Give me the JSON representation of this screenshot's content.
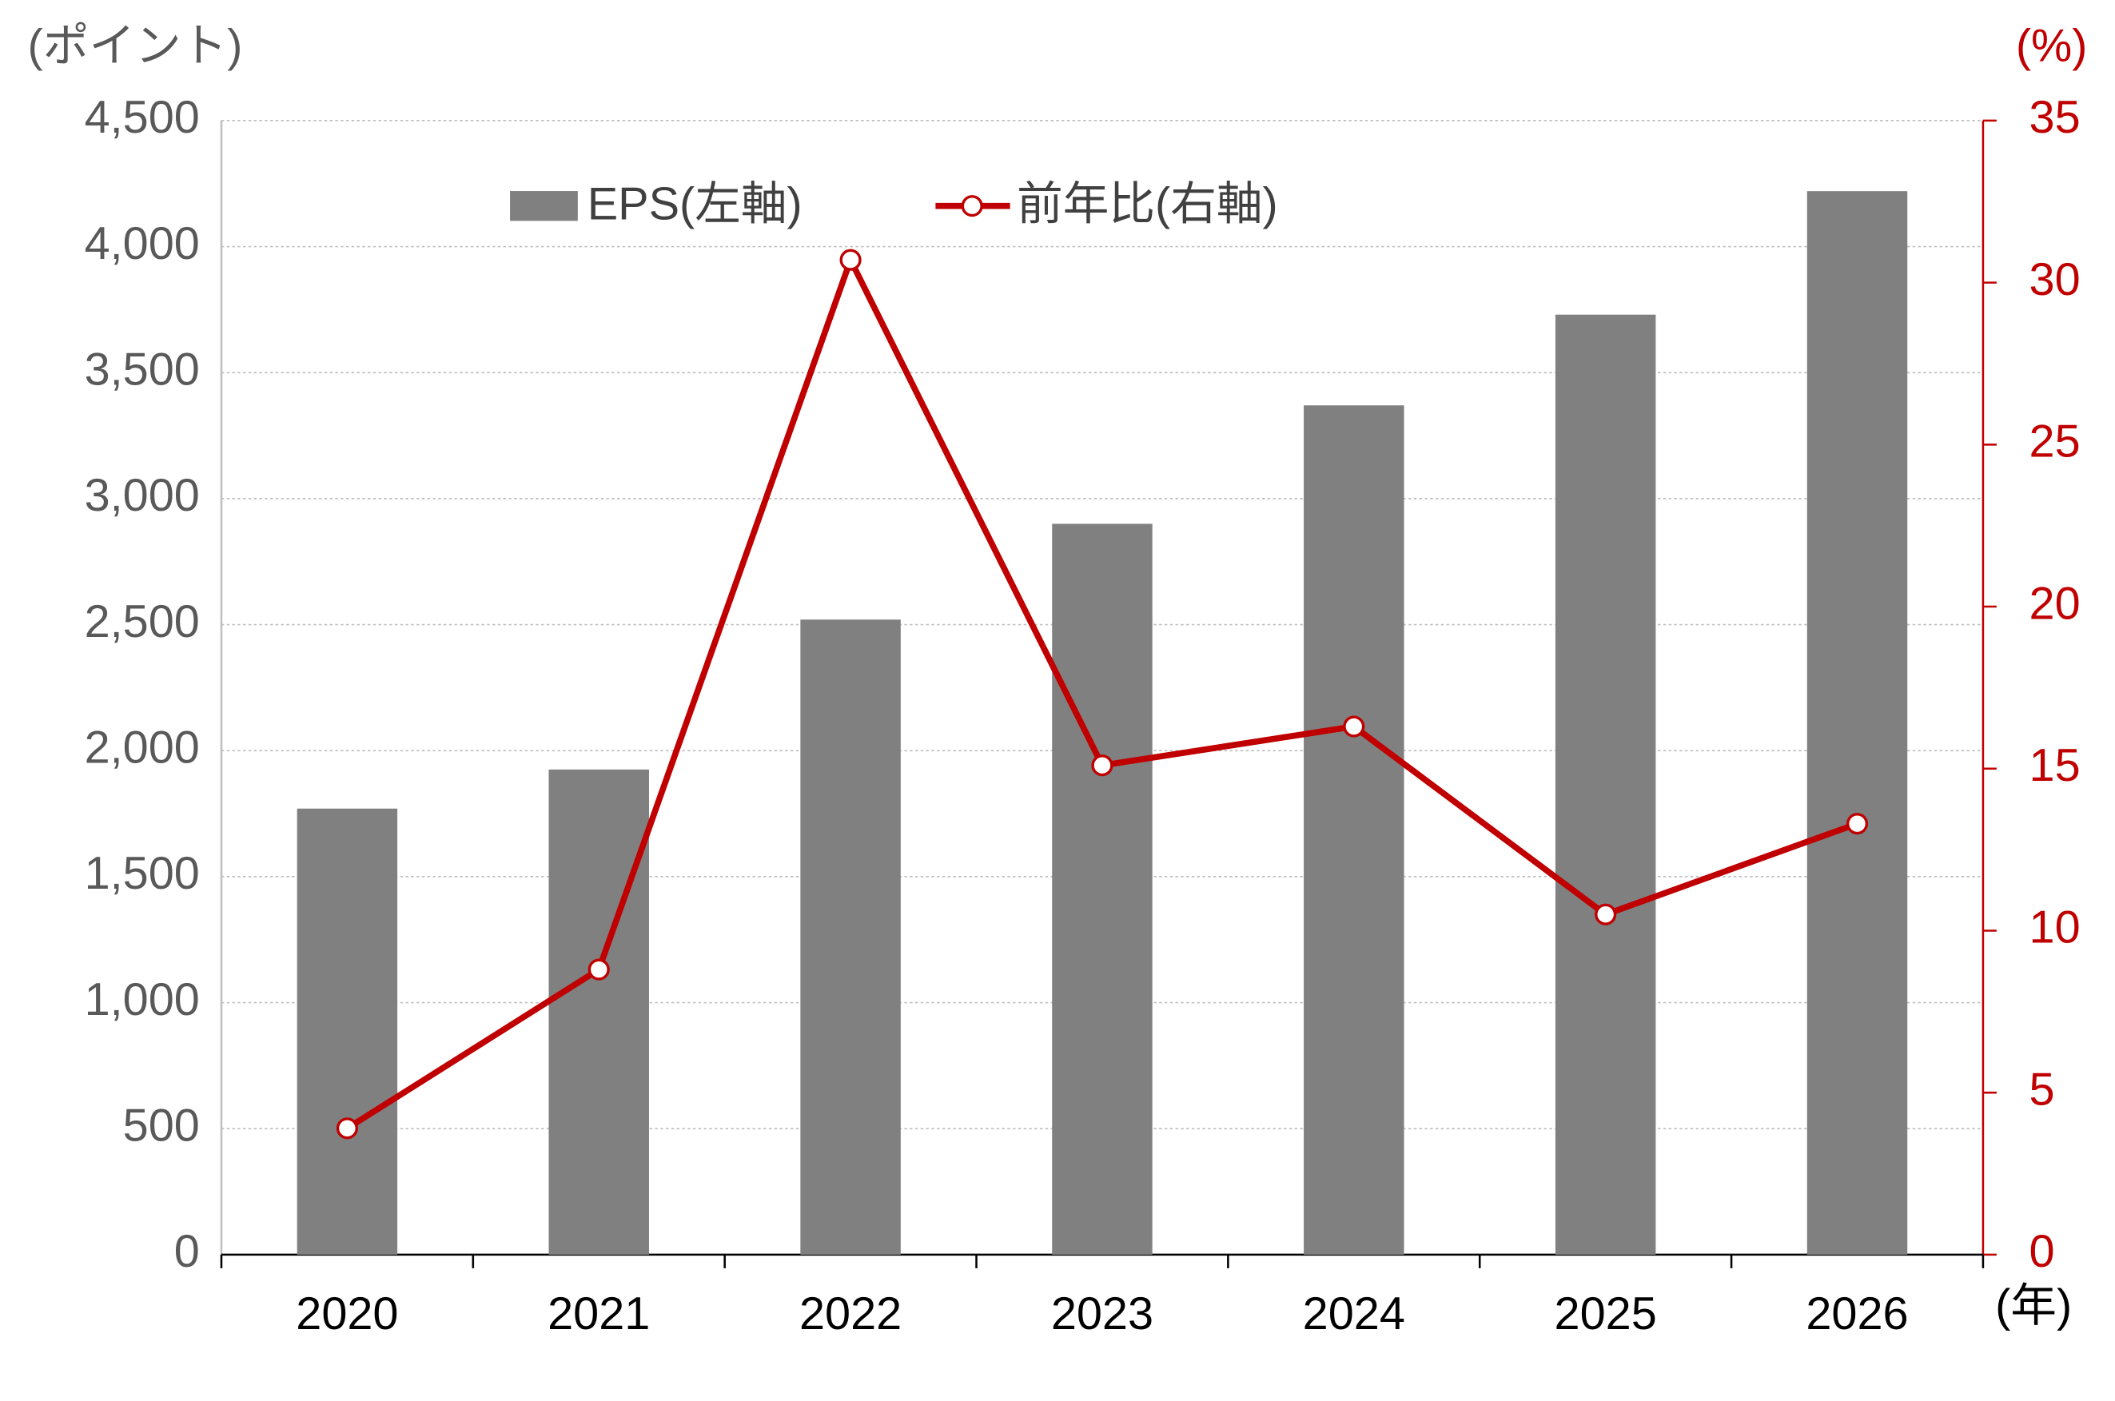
{
  "chart_data": {
    "type": "bar",
    "y_unit": "(ポイント)",
    "y2_unit": "(%)",
    "x_unit": "(年)",
    "categories": [
      "2020",
      "2021",
      "2022",
      "2023",
      "2024",
      "2025",
      "2026"
    ],
    "series": [
      {
        "name": "EPS(左軸)",
        "type": "bar",
        "color": "#808080",
        "values": [
          1770,
          1925,
          2520,
          2900,
          3370,
          3730,
          4220
        ]
      },
      {
        "name": "前年比(右軸)",
        "type": "line",
        "color": "#c00000",
        "axis": "y2",
        "values": [
          3.9,
          8.8,
          30.7,
          15.1,
          16.3,
          10.5,
          13.3
        ]
      }
    ],
    "ylim": [
      0,
      4500
    ],
    "yticks": [
      0,
      500,
      {
        "value": 1000,
        "label": "1,000"
      },
      {
        "value": 1500,
        "label": "1,500"
      },
      {
        "value": 2000,
        "label": "2,000"
      },
      {
        "value": 2500,
        "label": "2,500"
      },
      {
        "value": 3000,
        "label": "3,000"
      },
      {
        "value": 3500,
        "label": "3,500"
      },
      {
        "value": 4000,
        "label": "4,000"
      },
      {
        "value": 4500,
        "label": "4,500"
      }
    ],
    "y2lim": [
      0,
      35
    ],
    "y2ticks": [
      0,
      5,
      10,
      15,
      20,
      25,
      30,
      35
    ],
    "grid": true
  }
}
